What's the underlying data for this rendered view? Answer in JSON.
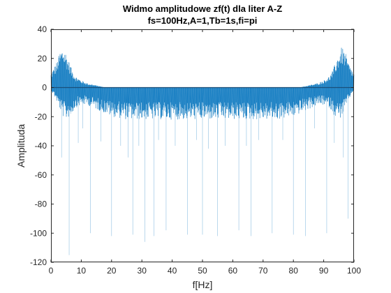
{
  "chart_data": {
    "type": "line",
    "title": "Widmo amplitudowe zf(t) dla liter A-Z",
    "subtitle": "fs=100Hz,A=1,Tb=1s,fi=pi",
    "xlabel": "f[Hz]",
    "ylabel": "Amplituda",
    "xlim": [
      0,
      100
    ],
    "ylim": [
      -120,
      40
    ],
    "x_ticks": [
      "0",
      "10",
      "20",
      "30",
      "40",
      "50",
      "60",
      "70",
      "80",
      "90",
      "100"
    ],
    "y_ticks": [
      "40",
      "20",
      "0",
      "-20",
      "-40",
      "-60",
      "-80",
      "-100",
      "-120"
    ],
    "grid": false,
    "legend": "none",
    "series_color": "#0072BD",
    "series": [
      {
        "x": [
          0,
          1,
          2,
          3,
          4,
          5,
          6,
          7,
          8,
          10,
          12,
          14,
          16,
          18,
          20,
          25,
          30,
          35,
          40,
          45,
          50,
          55,
          60,
          65,
          70,
          75,
          80,
          82,
          84,
          86,
          88,
          90,
          92,
          93,
          94,
          95,
          96,
          97,
          98,
          99,
          100
        ],
        "envelope_max": [
          10,
          14,
          18,
          25,
          28,
          24,
          18,
          12,
          8,
          5,
          3,
          2,
          1,
          0,
          0,
          0,
          0,
          0,
          0,
          0,
          0,
          0,
          0,
          0,
          0,
          0,
          0,
          0,
          1,
          2,
          3,
          5,
          8,
          12,
          18,
          24,
          28,
          25,
          18,
          14,
          10
        ],
        "envelope_min": [
          -2,
          -5,
          -10,
          -15,
          -20,
          -22,
          -20,
          -18,
          -14,
          -12,
          -12,
          -14,
          -16,
          -18,
          -20,
          -22,
          -22,
          -22,
          -22,
          -22,
          -22,
          -22,
          -22,
          -22,
          -22,
          -22,
          -20,
          -18,
          -16,
          -14,
          -12,
          -12,
          -14,
          -18,
          -20,
          -22,
          -20,
          -15,
          -10,
          -5,
          -2
        ]
      }
    ],
    "spikes": [
      {
        "x": 3.5,
        "y": -48
      },
      {
        "x": 6.5,
        "y": -18
      },
      {
        "x": 9,
        "y": -38
      },
      {
        "x": 10.5,
        "y": -28
      },
      {
        "x": 13,
        "y": -100
      },
      {
        "x": 16.5,
        "y": -37
      },
      {
        "x": 20,
        "y": -102
      },
      {
        "x": 23,
        "y": -40
      },
      {
        "x": 25.5,
        "y": -48
      },
      {
        "x": 27,
        "y": -101
      },
      {
        "x": 29,
        "y": -40
      },
      {
        "x": 31,
        "y": -106
      },
      {
        "x": 34,
        "y": -102
      },
      {
        "x": 35.5,
        "y": -36
      },
      {
        "x": 38,
        "y": -98
      },
      {
        "x": 41,
        "y": -40
      },
      {
        "x": 45,
        "y": -101
      },
      {
        "x": 48,
        "y": -36
      },
      {
        "x": 50,
        "y": -101
      },
      {
        "x": 52,
        "y": -42
      },
      {
        "x": 55,
        "y": -102
      },
      {
        "x": 57.5,
        "y": -40
      },
      {
        "x": 62,
        "y": -98
      },
      {
        "x": 64.5,
        "y": -40
      },
      {
        "x": 66,
        "y": -102
      },
      {
        "x": 68.5,
        "y": -36
      },
      {
        "x": 73,
        "y": -100
      },
      {
        "x": 76.5,
        "y": -36
      },
      {
        "x": 80,
        "y": -101
      },
      {
        "x": 84,
        "y": -102
      },
      {
        "x": 87,
        "y": -28
      },
      {
        "x": 91,
        "y": -100
      },
      {
        "x": 93.5,
        "y": -38
      },
      {
        "x": 96.5,
        "y": -48
      },
      {
        "x": 98,
        "y": -90
      },
      {
        "x": 6,
        "y": -115
      }
    ]
  }
}
